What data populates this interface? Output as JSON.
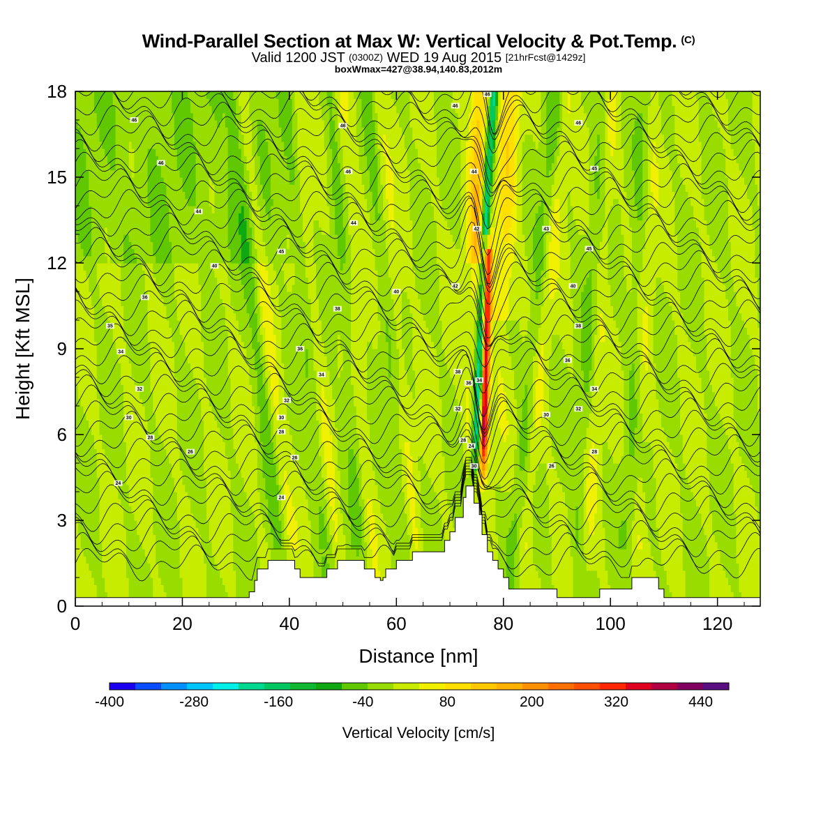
{
  "header": {
    "title": "Wind-Parallel Section at Max W: Vertical Velocity & Pot.Temp.",
    "copyright": "(C)",
    "valid_prefix": "Valid 1200 JST",
    "valid_utc": "(0300Z)",
    "valid_date": "WED 19 Aug 2015",
    "forecast": "[21hrFcst@1429z]",
    "boxwmax": "boxWmax=427@38.94,140.83,2012m"
  },
  "chart_data": {
    "type": "heatmap",
    "xlabel": "Distance [nm]",
    "ylabel": "Height [Kft MSL]",
    "xlim": [
      0,
      128
    ],
    "ylim": [
      0,
      18
    ],
    "xticks": [
      0,
      20,
      40,
      60,
      80,
      100,
      120
    ],
    "yticks": [
      0,
      3,
      6,
      9,
      12,
      15,
      18
    ],
    "colorbar": {
      "title": "Vertical Velocity [cm/s]",
      "range": [
        -400,
        480
      ],
      "step": 40,
      "labels": [
        -400,
        -280,
        -160,
        -40,
        80,
        200,
        320,
        440
      ],
      "colors": [
        "#1e00f0",
        "#0a4cff",
        "#0090ff",
        "#00c4ff",
        "#00f0e8",
        "#00d890",
        "#00c860",
        "#10b830",
        "#10a810",
        "#60c800",
        "#98dc00",
        "#c8ec00",
        "#f0f000",
        "#ffe000",
        "#ffc800",
        "#ffb000",
        "#ff9000",
        "#ff7000",
        "#ff5000",
        "#ff2800",
        "#e00020",
        "#b00040",
        "#800060",
        "#5a1080"
      ]
    },
    "theta_contour_labels": [
      {
        "x": 11,
        "y": 17.0,
        "v": "46"
      },
      {
        "x": 16,
        "y": 15.5,
        "v": "46"
      },
      {
        "x": 23,
        "y": 13.8,
        "v": "44"
      },
      {
        "x": 26,
        "y": 11.9,
        "v": "40"
      },
      {
        "x": 13,
        "y": 10.8,
        "v": "36"
      },
      {
        "x": 6.5,
        "y": 9.8,
        "v": "35"
      },
      {
        "x": 8.5,
        "y": 8.9,
        "v": "34"
      },
      {
        "x": 12,
        "y": 7.6,
        "v": "32"
      },
      {
        "x": 10,
        "y": 6.6,
        "v": "30"
      },
      {
        "x": 14,
        "y": 5.9,
        "v": "28"
      },
      {
        "x": 21.5,
        "y": 5.4,
        "v": "26"
      },
      {
        "x": 8,
        "y": 4.3,
        "v": "24"
      },
      {
        "x": 38.5,
        "y": 12.4,
        "v": "45"
      },
      {
        "x": 50,
        "y": 16.8,
        "v": "46"
      },
      {
        "x": 51,
        "y": 15.2,
        "v": "46"
      },
      {
        "x": 52,
        "y": 13.4,
        "v": "44"
      },
      {
        "x": 60,
        "y": 11.0,
        "v": "40"
      },
      {
        "x": 49,
        "y": 10.4,
        "v": "38"
      },
      {
        "x": 42,
        "y": 9.0,
        "v": "36"
      },
      {
        "x": 46,
        "y": 8.1,
        "v": "34"
      },
      {
        "x": 39.5,
        "y": 7.2,
        "v": "32"
      },
      {
        "x": 38.5,
        "y": 6.6,
        "v": "30"
      },
      {
        "x": 38.5,
        "y": 6.1,
        "v": "28"
      },
      {
        "x": 41,
        "y": 5.2,
        "v": "26"
      },
      {
        "x": 38.5,
        "y": 3.8,
        "v": "24"
      },
      {
        "x": 71,
        "y": 17.5,
        "v": "46"
      },
      {
        "x": 77,
        "y": 17.9,
        "v": "46"
      },
      {
        "x": 74.5,
        "y": 15.2,
        "v": "44"
      },
      {
        "x": 75,
        "y": 13.2,
        "v": "42"
      },
      {
        "x": 71,
        "y": 11.2,
        "v": "42"
      },
      {
        "x": 71.5,
        "y": 8.2,
        "v": "38"
      },
      {
        "x": 73.5,
        "y": 7.8,
        "v": "36"
      },
      {
        "x": 75.5,
        "y": 7.9,
        "v": "34"
      },
      {
        "x": 71.5,
        "y": 6.9,
        "v": "32"
      },
      {
        "x": 72.5,
        "y": 5.8,
        "v": "28"
      },
      {
        "x": 74,
        "y": 5.6,
        "v": "24"
      },
      {
        "x": 74.5,
        "y": 4.9,
        "v": "30"
      },
      {
        "x": 94,
        "y": 16.9,
        "v": "46"
      },
      {
        "x": 97,
        "y": 15.3,
        "v": "45"
      },
      {
        "x": 88,
        "y": 13.2,
        "v": "43"
      },
      {
        "x": 96,
        "y": 12.5,
        "v": "45"
      },
      {
        "x": 93,
        "y": 11.2,
        "v": "40"
      },
      {
        "x": 94,
        "y": 9.8,
        "v": "38"
      },
      {
        "x": 92,
        "y": 8.6,
        "v": "36"
      },
      {
        "x": 97,
        "y": 7.6,
        "v": "34"
      },
      {
        "x": 94,
        "y": 6.9,
        "v": "32"
      },
      {
        "x": 88,
        "y": 6.7,
        "v": "30"
      },
      {
        "x": 97,
        "y": 5.4,
        "v": "28"
      },
      {
        "x": 89,
        "y": 4.9,
        "v": "26"
      }
    ],
    "terrain": [
      [
        0,
        0.3
      ],
      [
        32.5,
        0.3
      ],
      [
        32.5,
        0.5
      ],
      [
        33.5,
        0.5
      ],
      [
        33.5,
        0.9
      ],
      [
        34,
        0.9
      ],
      [
        34,
        1.3
      ],
      [
        36,
        1.3
      ],
      [
        36,
        1.6
      ],
      [
        41,
        1.6
      ],
      [
        41,
        1.3
      ],
      [
        42,
        1.3
      ],
      [
        42,
        1.0
      ],
      [
        47,
        1.0
      ],
      [
        47,
        1.3
      ],
      [
        49,
        1.3
      ],
      [
        49,
        1.6
      ],
      [
        54,
        1.6
      ],
      [
        54,
        1.3
      ],
      [
        56,
        1.3
      ],
      [
        56,
        1.0
      ],
      [
        57,
        1.0
      ],
      [
        57,
        0.9
      ],
      [
        57.5,
        0.9
      ],
      [
        57.5,
        1.0
      ],
      [
        58,
        1.0
      ],
      [
        58,
        1.3
      ],
      [
        60,
        1.3
      ],
      [
        60,
        1.6
      ],
      [
        63,
        1.6
      ],
      [
        63,
        1.9
      ],
      [
        69,
        1.9
      ],
      [
        69,
        2.3
      ],
      [
        70,
        2.3
      ],
      [
        70,
        2.6
      ],
      [
        71,
        2.6
      ],
      [
        71,
        3.1
      ],
      [
        72.5,
        3.1
      ],
      [
        72.5,
        3.8
      ],
      [
        73,
        3.8
      ],
      [
        73,
        4.2
      ],
      [
        74.5,
        4.2
      ],
      [
        74.5,
        3.6
      ],
      [
        75.5,
        3.6
      ],
      [
        75.5,
        3.2
      ],
      [
        76,
        3.2
      ],
      [
        76,
        2.5
      ],
      [
        77,
        2.5
      ],
      [
        77,
        1.9
      ],
      [
        78,
        1.9
      ],
      [
        78,
        1.6
      ],
      [
        79,
        1.6
      ],
      [
        79,
        1.3
      ],
      [
        80,
        1.3
      ],
      [
        80,
        1.0
      ],
      [
        81,
        1.0
      ],
      [
        81,
        0.6
      ],
      [
        82,
        0.6
      ],
      [
        82,
        0.6
      ],
      [
        90,
        0.6
      ],
      [
        90,
        0.3
      ],
      [
        98,
        0.3
      ],
      [
        98,
        0.6
      ],
      [
        104,
        0.6
      ],
      [
        104,
        1.0
      ],
      [
        109,
        1.0
      ],
      [
        109,
        0.6
      ],
      [
        110,
        0.6
      ],
      [
        110,
        0.3
      ],
      [
        128,
        0.3
      ]
    ]
  }
}
